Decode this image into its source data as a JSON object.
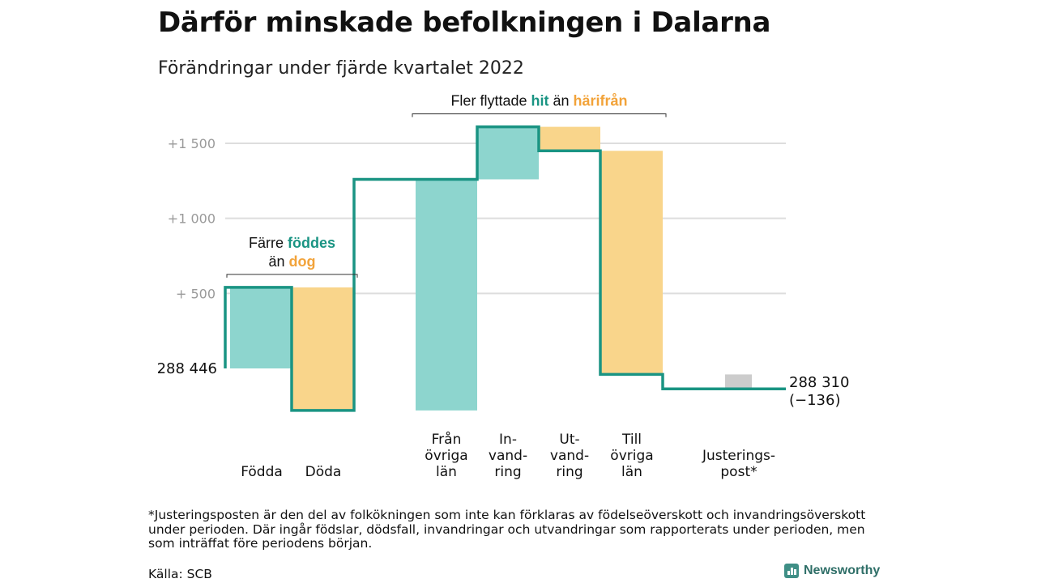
{
  "title": "Därför minskade befolkningen i Dalarna",
  "subtitle": "Förändringar under fjärde kvartalet 2022",
  "footnote": "*Justeringsposten är den del av folkökningen som inte kan förklaras av födelseöverskott och invandringsöverskott under perioden. Där ingår födslar, dödsfall, invandringar och utvandringar som rapporterats under perioden, men som inträffat före periodens början.",
  "source": "Källa: SCB",
  "brand": "Newsworthy",
  "colors": {
    "increase": "#8dd5ce",
    "decrease": "#f9d58b",
    "adjustment": "#cccccc",
    "line": "#1a9483",
    "accent_hit": "#1a9483",
    "accent_harifran": "#f2a33a"
  },
  "chart_data": {
    "type": "waterfall",
    "start_value": 288446,
    "start_label": "288 446",
    "end_value": 288310,
    "end_label": "288 310",
    "end_change_label": "(−136)",
    "ylim": [
      -275,
      1740
    ],
    "yticks": [
      {
        "value": 500,
        "label": "+ 500"
      },
      {
        "value": 1000,
        "label": "+1 000"
      },
      {
        "value": 1500,
        "label": "+1 500"
      }
    ],
    "grid": true,
    "steps": [
      {
        "label": [
          "Födda"
        ],
        "value": 540,
        "kind": "increase"
      },
      {
        "label": [
          "Döda"
        ],
        "value": -820,
        "kind": "decrease"
      },
      {
        "label": [
          "Från",
          "övriga",
          "län"
        ],
        "value": 1540,
        "kind": "increase"
      },
      {
        "label": [
          "In-",
          "vand-",
          "ring"
        ],
        "value": 350,
        "kind": "increase"
      },
      {
        "label": [
          "Ut-",
          "vand-",
          "ring"
        ],
        "value": -160,
        "kind": "decrease"
      },
      {
        "label": [
          "Till",
          "övriga",
          "län"
        ],
        "value": -1490,
        "kind": "decrease"
      },
      {
        "label": [
          "Justerings-",
          "post*"
        ],
        "value": -96,
        "kind": "adjustment"
      }
    ],
    "annotations": [
      {
        "lines": [
          [
            {
              "text": "Färre ",
              "accent": ""
            },
            {
              "text": "föddes",
              "accent": "increase"
            }
          ],
          [
            {
              "text": "än ",
              "accent": ""
            },
            {
              "text": "dog",
              "accent": "decrease"
            }
          ]
        ],
        "from_step": 0,
        "to_step": 1
      },
      {
        "lines": [
          [
            {
              "text": "Fler flyttade ",
              "accent": ""
            },
            {
              "text": "hit",
              "accent": "increase"
            },
            {
              "text": " än ",
              "accent": ""
            },
            {
              "text": "härifrån",
              "accent": "decrease"
            }
          ]
        ],
        "from_step": 2,
        "to_step": 5
      }
    ]
  }
}
